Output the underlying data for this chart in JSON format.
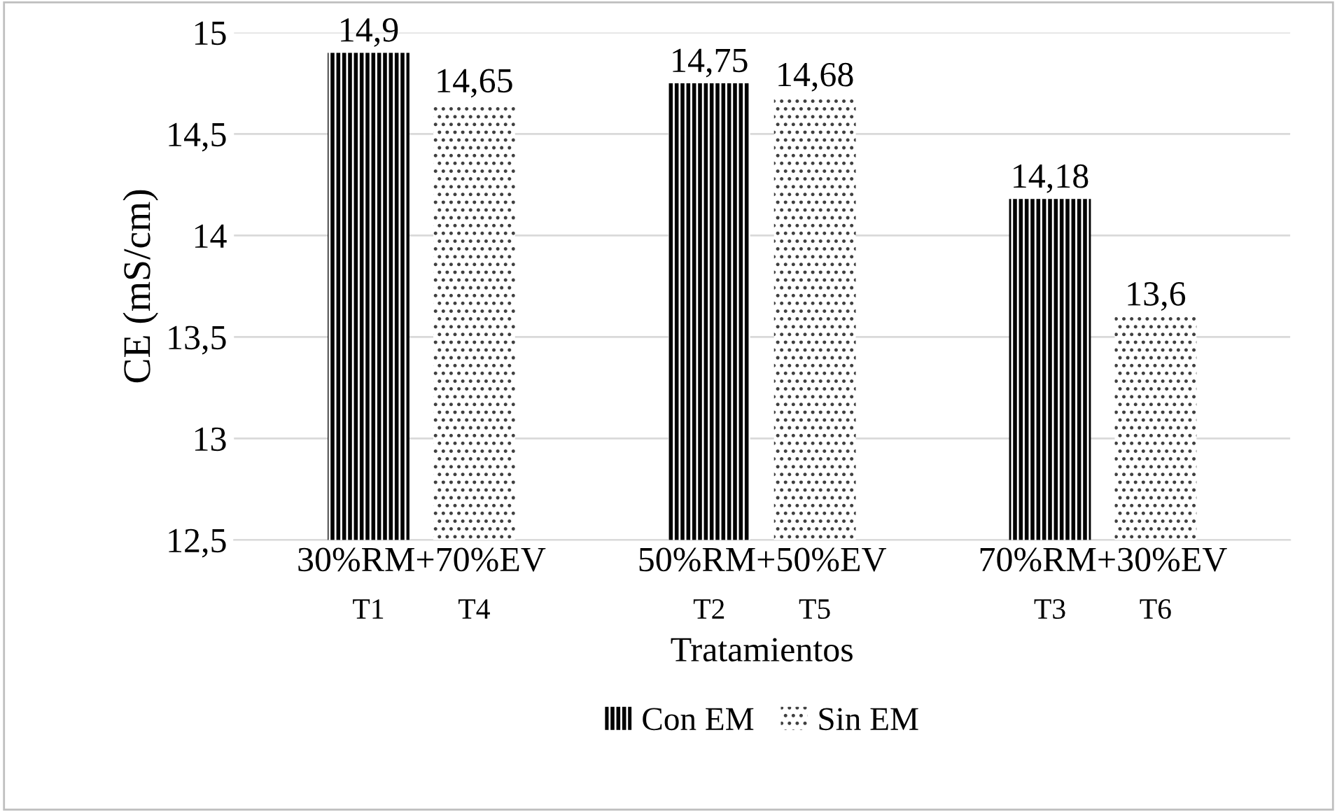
{
  "chart_data": {
    "type": "bar",
    "xlabel": "Tratamientos",
    "ylabel": "CE (mS/cm)",
    "categories": [
      "30%RM+70%EV",
      "50%RM+50%EV",
      "70%RM+30%EV"
    ],
    "series": [
      {
        "name": "Con EM",
        "color": "#000000",
        "values": [
          14.9,
          14.75,
          14.18
        ],
        "value_labels": [
          "14,9",
          "14,75",
          "14,18"
        ]
      },
      {
        "name": "Sin EM",
        "color": "#ffffff",
        "values": [
          14.65,
          14.68,
          13.6
        ],
        "value_labels": [
          "14,65",
          "14,68",
          "13,6"
        ]
      }
    ],
    "ylim": [
      12.5,
      15
    ],
    "yticks": [
      {
        "value": 12.5,
        "label": "12,5"
      },
      {
        "value": 13,
        "label": "13"
      },
      {
        "value": 13.5,
        "label": "13,5"
      },
      {
        "value": 14,
        "label": "14"
      },
      {
        "value": 14.5,
        "label": "14,5"
      },
      {
        "value": 15,
        "label": "15"
      }
    ],
    "grid": "y",
    "legend": "bottom",
    "annotations": [
      "T1",
      "T4",
      "T2",
      "T5",
      "T3",
      "T6"
    ]
  }
}
